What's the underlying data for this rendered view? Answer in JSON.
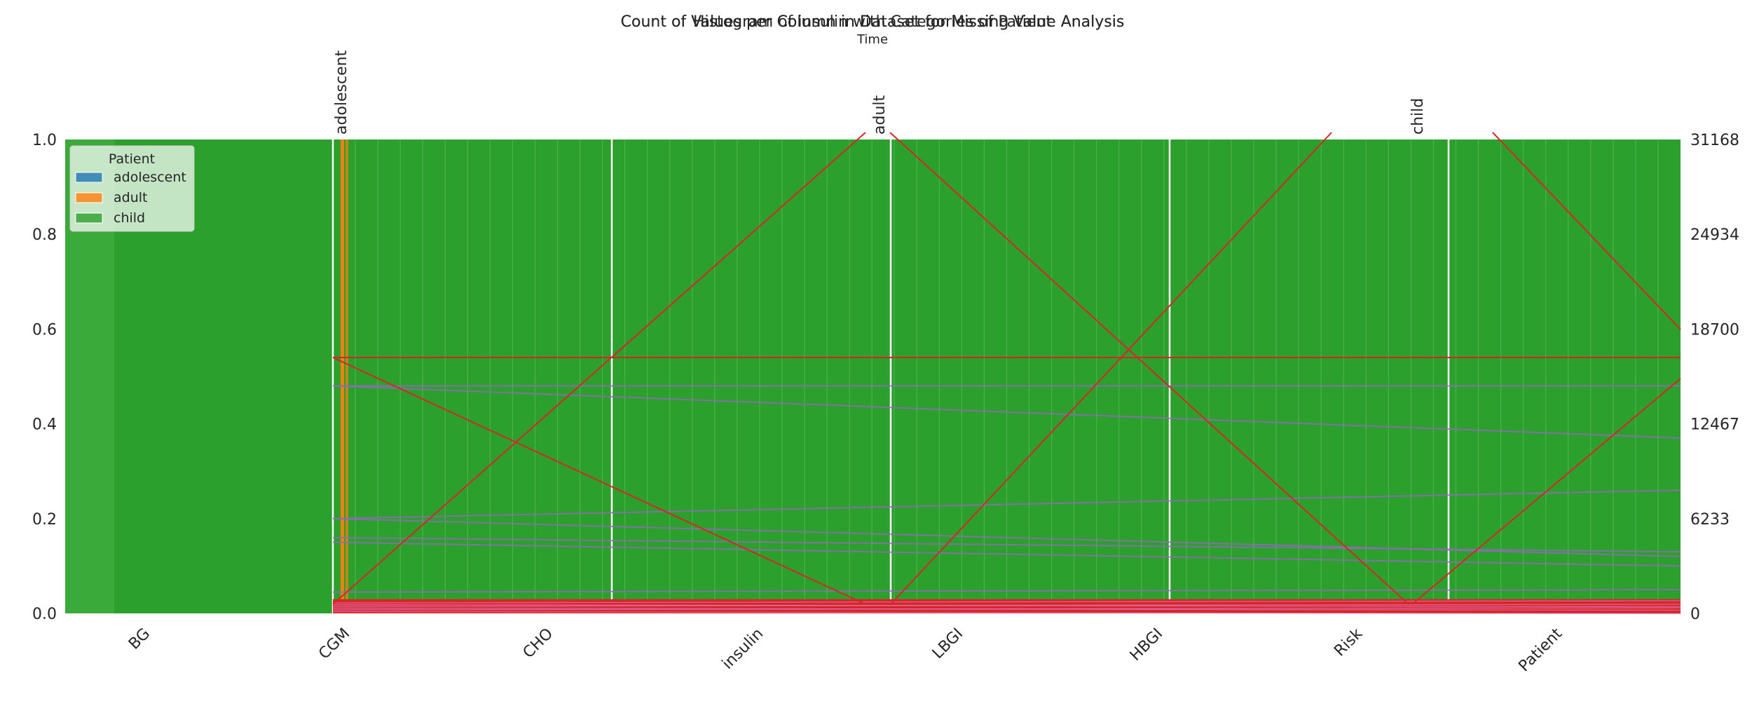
{
  "chart_data": {
    "type": "composite",
    "titles": [
      "Count of Values per Column in Dataset for Missing Value Analysis",
      "Histogram of insulin with Categories of Patient",
      "Count of Values per Column in Dataset for Missing Value Analysis"
    ],
    "top_axis_label": "Time",
    "bar_layer": {
      "type": "bar",
      "categories": [
        "BG",
        "CGM",
        "CHO",
        "insulin",
        "LBGI",
        "HBGI",
        "Risk",
        "Patient"
      ],
      "values": [
        1.0,
        0.03,
        0.03,
        0.03,
        0.03,
        0.03,
        0.03,
        0.03
      ],
      "ylim": [
        0,
        1.0
      ],
      "y_ticks": [
        "0.0",
        "0.2",
        "0.4",
        "0.6",
        "0.8",
        "1.0"
      ],
      "color": "#d62728"
    },
    "histogram_layer": {
      "type": "bar",
      "stacked": true,
      "categories_top": [
        "adolescent",
        "adult",
        "child"
      ],
      "series": [
        {
          "name": "adolescent",
          "color": "#1f77b4"
        },
        {
          "name": "adult",
          "color": "#ff7f0e"
        },
        {
          "name": "child",
          "color": "#2ca02c"
        }
      ],
      "right_axis_ticks": [
        "0",
        "6233",
        "12467",
        "18700",
        "24934",
        "31168"
      ],
      "ylim": [
        0,
        31168
      ]
    },
    "parallel_lines_layer": {
      "type": "line",
      "red_lines": [
        [
          0.54,
          0.54
        ],
        [
          0.54,
          0.0
        ],
        [
          0.0,
          1.05
        ]
      ],
      "purple_lines": [
        [
          0.48,
          0.48
        ],
        [
          0.48,
          0.37
        ],
        [
          0.2,
          0.26
        ],
        [
          0.2,
          0.12
        ],
        [
          0.16,
          0.13
        ],
        [
          0.15,
          0.1
        ],
        [
          0.045,
          0.05
        ]
      ]
    },
    "legend": {
      "title": "Patient",
      "entries": [
        "adolescent",
        "adult",
        "child"
      ],
      "placement": "top-left"
    }
  }
}
